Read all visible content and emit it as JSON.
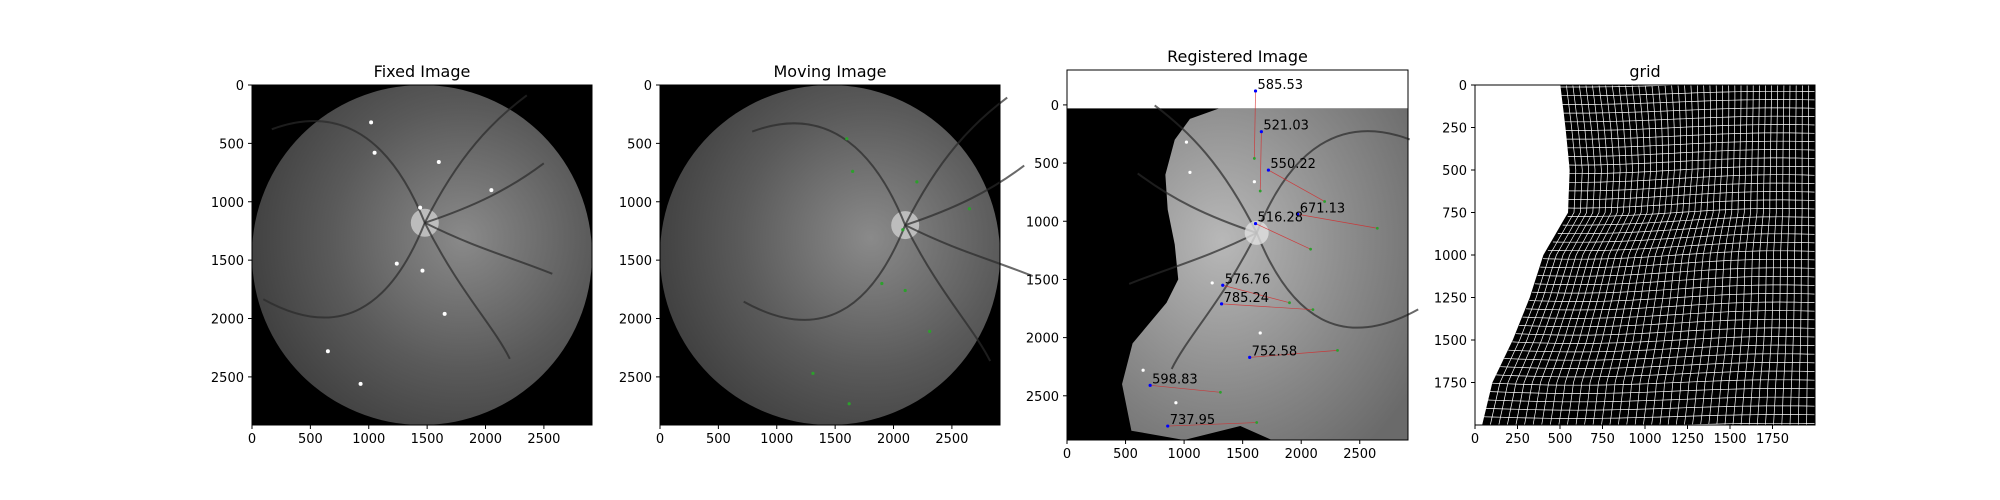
{
  "colors": {
    "fixed_keypoint": "#ffffff",
    "moving_keypoint": "#2ca02c",
    "registered_keypoint": "#0000ff",
    "match_line": "#d62728",
    "grid_line": "#ffffff",
    "background": "#000000"
  },
  "chart_data": [
    {
      "type": "image",
      "title": "Fixed Image",
      "xlim": [
        0,
        2912
      ],
      "ylim": [
        2912,
        0
      ],
      "x_ticks": [
        0,
        500,
        1000,
        1500,
        2000,
        2500
      ],
      "y_ticks": [
        0,
        500,
        1000,
        1500,
        2000,
        2500
      ],
      "fundus_center": [
        1456,
        1456
      ],
      "fundus_radius": 1456,
      "keypoints": [
        [
          1020,
          320
        ],
        [
          1050,
          580
        ],
        [
          1600,
          660
        ],
        [
          2050,
          900
        ],
        [
          1440,
          1050
        ],
        [
          1240,
          1530
        ],
        [
          1460,
          1590
        ],
        [
          1650,
          1960
        ],
        [
          650,
          2280
        ],
        [
          930,
          2560
        ]
      ]
    },
    {
      "type": "image",
      "title": "Moving Image",
      "xlim": [
        0,
        2912
      ],
      "ylim": [
        2912,
        0
      ],
      "x_ticks": [
        0,
        500,
        1000,
        1500,
        2000,
        2500
      ],
      "y_ticks": [
        0,
        500,
        1000,
        1500,
        2000,
        2500
      ],
      "fundus_center": [
        1456,
        1456
      ],
      "fundus_radius": 1456,
      "keypoints": [
        [
          1600,
          460
        ],
        [
          1650,
          740
        ],
        [
          2200,
          830
        ],
        [
          2650,
          1060
        ],
        [
          2080,
          1240
        ],
        [
          1900,
          1700
        ],
        [
          2100,
          1760
        ],
        [
          2310,
          2110
        ],
        [
          1310,
          2470
        ],
        [
          1620,
          2730
        ]
      ]
    },
    {
      "type": "image",
      "title": "Registered Image",
      "xlim": [
        0,
        2912
      ],
      "ylim": [
        2880,
        -300
      ],
      "x_ticks": [
        0,
        500,
        1000,
        1500,
        2000,
        2500
      ],
      "y_ticks": [
        0,
        500,
        1000,
        1500,
        2000,
        2500
      ],
      "mask_outline": [
        [
          920,
          300
        ],
        [
          1050,
          120
        ],
        [
          1300,
          30
        ],
        [
          2912,
          30
        ],
        [
          2912,
          2880
        ],
        [
          1750,
          2880
        ],
        [
          1480,
          2760
        ],
        [
          1000,
          2880
        ],
        [
          550,
          2800
        ],
        [
          470,
          2400
        ],
        [
          560,
          2050
        ],
        [
          850,
          1700
        ],
        [
          950,
          1500
        ],
        [
          920,
          1200
        ],
        [
          860,
          900
        ],
        [
          840,
          600
        ]
      ],
      "matches": [
        {
          "label": "585.53",
          "registered": [
            1610,
            -120
          ],
          "moving": [
            1600,
            460
          ]
        },
        {
          "label": "521.03",
          "registered": [
            1660,
            230
          ],
          "moving": [
            1650,
            740
          ]
        },
        {
          "label": "550.22",
          "registered": [
            1720,
            560
          ],
          "moving": [
            2200,
            830
          ]
        },
        {
          "label": "671.13",
          "registered": [
            1970,
            940
          ],
          "moving": [
            2650,
            1060
          ]
        },
        {
          "label": "516.28",
          "registered": [
            1610,
            1020
          ],
          "moving": [
            2080,
            1240
          ]
        },
        {
          "label": "576.76",
          "registered": [
            1330,
            1550
          ],
          "moving": [
            1900,
            1700
          ]
        },
        {
          "label": "785.24",
          "registered": [
            1320,
            1710
          ],
          "moving": [
            2100,
            1760
          ]
        },
        {
          "label": "752.58",
          "registered": [
            1560,
            2170
          ],
          "moving": [
            2310,
            2110
          ]
        },
        {
          "label": "598.83",
          "registered": [
            710,
            2410
          ],
          "moving": [
            1310,
            2470
          ]
        },
        {
          "label": "737.95",
          "registered": [
            860,
            2760
          ],
          "moving": [
            1620,
            2730
          ]
        }
      ],
      "fixed_overlay_points": [
        [
          1020,
          320
        ],
        [
          1050,
          580
        ],
        [
          1600,
          660
        ],
        [
          1240,
          1530
        ],
        [
          1650,
          1960
        ],
        [
          650,
          2280
        ],
        [
          930,
          2560
        ]
      ]
    },
    {
      "type": "grid",
      "title": "grid",
      "xlim": [
        0,
        2000
      ],
      "ylim": [
        2000,
        0
      ],
      "x_ticks": [
        0,
        250,
        500,
        750,
        1000,
        1250,
        1500,
        1750
      ],
      "y_ticks": [
        0,
        250,
        500,
        750,
        1000,
        1250,
        1500,
        1750
      ],
      "left_boundary": [
        [
          500,
          0
        ],
        [
          530,
          250
        ],
        [
          555,
          500
        ],
        [
          545,
          750
        ],
        [
          400,
          1000
        ],
        [
          320,
          1250
        ],
        [
          220,
          1500
        ],
        [
          100,
          1750
        ],
        [
          40,
          2000
        ]
      ],
      "line_count": 40
    }
  ]
}
